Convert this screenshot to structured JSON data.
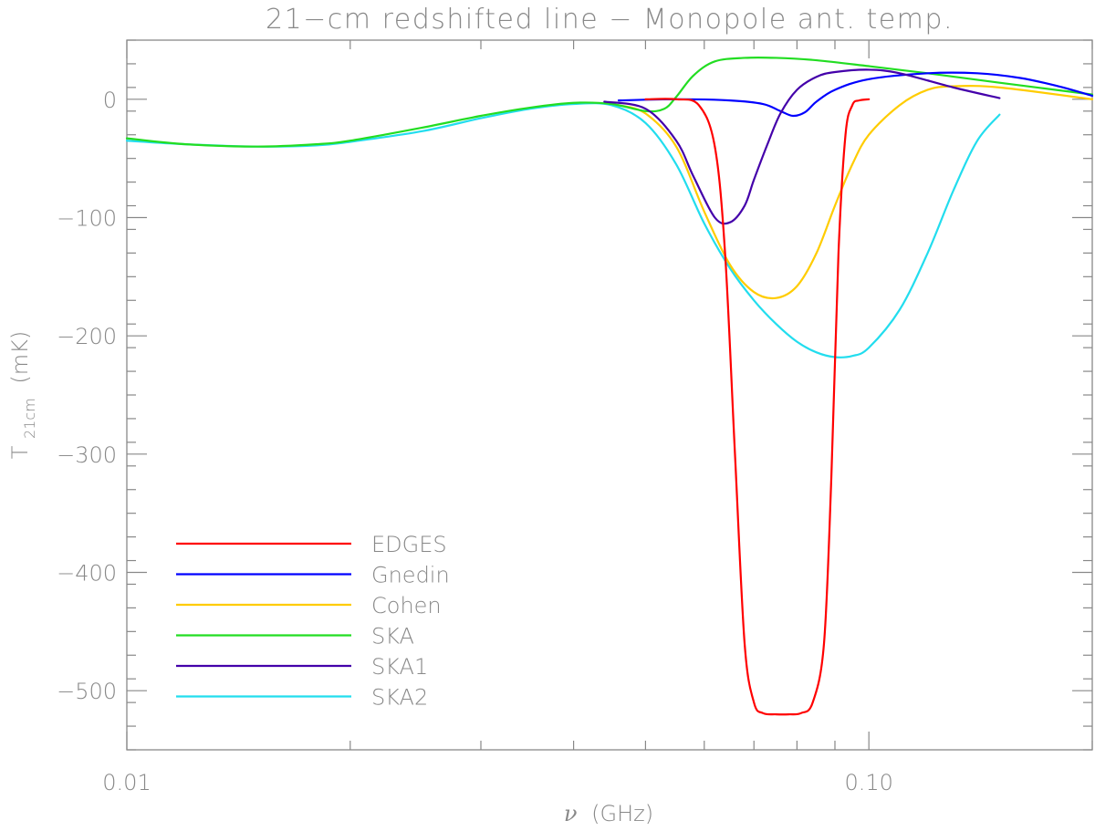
{
  "chart_data": {
    "type": "line",
    "title": "21−cm redshifted line − Monopole ant. temp.",
    "xlabel_symbol": "ν",
    "xlabel_unit": "(GHz)",
    "ylabel_main": "T",
    "ylabel_sub": "21cm",
    "ylabel_unit": "(mK)",
    "x_scale": "log",
    "xlim": [
      0.01,
      0.2
    ],
    "ylim": [
      -550,
      50
    ],
    "x_tick_labels": [
      {
        "value": 0.01,
        "label": "0.01"
      },
      {
        "value": 0.1,
        "label": "0.10"
      }
    ],
    "y_tick_labels": [
      {
        "value": 0,
        "label": "0"
      },
      {
        "value": -100,
        "label": "−100"
      },
      {
        "value": -200,
        "label": "−200"
      },
      {
        "value": -300,
        "label": "−300"
      },
      {
        "value": -400,
        "label": "−400"
      },
      {
        "value": -500,
        "label": "−500"
      }
    ],
    "grid": false,
    "legend_position": "bottom-left",
    "series": [
      {
        "name": "EDGES",
        "color": "#ff0000",
        "x": [
          0.05,
          0.055,
          0.059,
          0.062,
          0.064,
          0.066,
          0.068,
          0.07,
          0.072,
          0.075,
          0.078,
          0.081,
          0.084,
          0.087,
          0.089,
          0.091,
          0.093,
          0.095,
          0.097,
          0.1
        ],
        "y": [
          0,
          0,
          -5,
          -40,
          -130,
          -300,
          -460,
          -510,
          -519,
          -520,
          -520,
          -519,
          -510,
          -460,
          -320,
          -130,
          -30,
          -5,
          -1,
          0
        ]
      },
      {
        "name": "Gnedin",
        "color": "#0000ff",
        "x": [
          0.046,
          0.055,
          0.065,
          0.072,
          0.076,
          0.079,
          0.082,
          0.085,
          0.09,
          0.1,
          0.12,
          0.14,
          0.16,
          0.18,
          0.2
        ],
        "y": [
          -1,
          0,
          -1,
          -4,
          -10,
          -14,
          -11,
          -2,
          8,
          17,
          22,
          22,
          18,
          11,
          3
        ]
      },
      {
        "name": "Cohen",
        "color": "#ffcc00",
        "x": [
          0.046,
          0.05,
          0.055,
          0.06,
          0.065,
          0.07,
          0.075,
          0.08,
          0.085,
          0.09,
          0.095,
          0.1,
          0.11,
          0.12,
          0.13,
          0.15,
          0.2
        ],
        "y": [
          -5,
          -12,
          -40,
          -95,
          -140,
          -163,
          -168,
          -158,
          -130,
          -90,
          -55,
          -30,
          -5,
          8,
          11,
          10,
          0
        ]
      },
      {
        "name": "SKA",
        "color": "#22dd22",
        "x": [
          0.01,
          0.012,
          0.015,
          0.018,
          0.02,
          0.025,
          0.03,
          0.035,
          0.04,
          0.045,
          0.05,
          0.053,
          0.055,
          0.058,
          0.062,
          0.068,
          0.075,
          0.085,
          0.1,
          0.12,
          0.15,
          0.2
        ],
        "y": [
          -33,
          -38,
          -40,
          -38,
          -35,
          -24,
          -14,
          -7,
          -3,
          -4,
          -10,
          -8,
          2,
          20,
          32,
          35,
          35,
          33,
          28,
          22,
          14,
          4
        ]
      },
      {
        "name": "SKA1",
        "color": "#4400aa",
        "x": [
          0.044,
          0.05,
          0.055,
          0.058,
          0.062,
          0.065,
          0.068,
          0.07,
          0.073,
          0.076,
          0.08,
          0.085,
          0.09,
          0.1,
          0.11,
          0.13,
          0.15
        ],
        "y": [
          -2,
          -8,
          -35,
          -65,
          -100,
          -104,
          -90,
          -68,
          -38,
          -12,
          8,
          19,
          23,
          25,
          22,
          10,
          1
        ]
      },
      {
        "name": "SKA2",
        "color": "#22ddee",
        "x": [
          0.01,
          0.012,
          0.015,
          0.018,
          0.02,
          0.025,
          0.03,
          0.035,
          0.04,
          0.045,
          0.05,
          0.055,
          0.06,
          0.065,
          0.07,
          0.075,
          0.08,
          0.085,
          0.09,
          0.095,
          0.1,
          0.11,
          0.12,
          0.13,
          0.14,
          0.15
        ],
        "y": [
          -35,
          -38,
          -40,
          -39,
          -36,
          -27,
          -16,
          -8,
          -4,
          -5,
          -20,
          -55,
          -105,
          -143,
          -170,
          -190,
          -205,
          -214,
          -218,
          -217,
          -210,
          -178,
          -130,
          -77,
          -35,
          -13
        ]
      }
    ]
  }
}
